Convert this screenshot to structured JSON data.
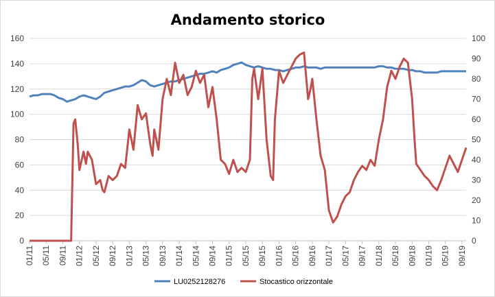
{
  "chart_data": {
    "type": "line",
    "title": "Andamento storico",
    "x_tick_labels": [
      "01/11",
      "05/11",
      "09/11",
      "01/12",
      "05/12",
      "09/12",
      "01/13",
      "05/13",
      "09/13",
      "01/14",
      "05/14",
      "09/14",
      "01/15",
      "05/15",
      "09/15",
      "01/16",
      "05/16",
      "09/16",
      "01/17",
      "05/17",
      "09/17",
      "01/18",
      "05/18",
      "09/18",
      "01/19",
      "05/19",
      "09/19"
    ],
    "y_left": {
      "ticks": [
        "0",
        "20",
        "40",
        "60",
        "80",
        "100",
        "120",
        "140",
        "160"
      ],
      "ylim": [
        0,
        160
      ]
    },
    "y_right": {
      "ticks": [
        "0",
        "10",
        "20",
        "30",
        "40",
        "50",
        "60",
        "70",
        "80",
        "90",
        "100"
      ],
      "ylim": [
        0,
        100
      ]
    },
    "grid": "horizontal",
    "legend_position": "bottom",
    "series": [
      {
        "name": "LU0252128276",
        "axis": "left",
        "color": "#4f81bd",
        "points": [
          [
            "01/11",
            114
          ],
          [
            "02/11",
            115
          ],
          [
            "03/11",
            115
          ],
          [
            "04/11",
            116
          ],
          [
            "05/11",
            116
          ],
          [
            "06/11",
            116
          ],
          [
            "07/11",
            115
          ],
          [
            "08/11",
            113
          ],
          [
            "09/11",
            112
          ],
          [
            "10/11",
            110
          ],
          [
            "11/11",
            111
          ],
          [
            "12/11",
            112
          ],
          [
            "01/12",
            114
          ],
          [
            "02/12",
            115
          ],
          [
            "03/12",
            114
          ],
          [
            "04/12",
            113
          ],
          [
            "05/12",
            112
          ],
          [
            "06/12",
            114
          ],
          [
            "07/12",
            117
          ],
          [
            "08/12",
            118
          ],
          [
            "09/12",
            119
          ],
          [
            "10/12",
            120
          ],
          [
            "11/12",
            121
          ],
          [
            "12/12",
            122
          ],
          [
            "01/13",
            122
          ],
          [
            "02/13",
            123
          ],
          [
            "03/13",
            125
          ],
          [
            "04/13",
            127
          ],
          [
            "05/13",
            126
          ],
          [
            "06/13",
            123
          ],
          [
            "07/13",
            122
          ],
          [
            "08/13",
            123
          ],
          [
            "09/13",
            124
          ],
          [
            "10/13",
            125
          ],
          [
            "11/13",
            126
          ],
          [
            "12/13",
            126
          ],
          [
            "01/14",
            127
          ],
          [
            "02/14",
            128
          ],
          [
            "03/14",
            129
          ],
          [
            "04/14",
            130
          ],
          [
            "05/14",
            131
          ],
          [
            "06/14",
            132
          ],
          [
            "07/14",
            132
          ],
          [
            "08/14",
            133
          ],
          [
            "09/14",
            134
          ],
          [
            "10/14",
            133
          ],
          [
            "11/14",
            135
          ],
          [
            "12/14",
            136
          ],
          [
            "01/15",
            137
          ],
          [
            "02/15",
            139
          ],
          [
            "03/15",
            140
          ],
          [
            "04/15",
            141
          ],
          [
            "05/15",
            139
          ],
          [
            "06/15",
            138
          ],
          [
            "07/15",
            137
          ],
          [
            "08/15",
            138
          ],
          [
            "09/15",
            137
          ],
          [
            "10/15",
            136
          ],
          [
            "11/15",
            136
          ],
          [
            "12/15",
            135
          ],
          [
            "01/16",
            135
          ],
          [
            "02/16",
            134
          ],
          [
            "03/16",
            135
          ],
          [
            "04/16",
            136
          ],
          [
            "05/16",
            137
          ],
          [
            "06/16",
            137
          ],
          [
            "07/16",
            138
          ],
          [
            "08/16",
            137
          ],
          [
            "09/16",
            137
          ],
          [
            "10/16",
            137
          ],
          [
            "11/16",
            136
          ],
          [
            "12/16",
            137
          ],
          [
            "01/17",
            137
          ],
          [
            "02/17",
            137
          ],
          [
            "03/17",
            137
          ],
          [
            "04/17",
            137
          ],
          [
            "05/17",
            137
          ],
          [
            "06/17",
            137
          ],
          [
            "07/17",
            137
          ],
          [
            "08/17",
            137
          ],
          [
            "09/17",
            137
          ],
          [
            "10/17",
            137
          ],
          [
            "11/17",
            137
          ],
          [
            "12/17",
            137
          ],
          [
            "01/18",
            138
          ],
          [
            "02/18",
            138
          ],
          [
            "03/18",
            137
          ],
          [
            "04/18",
            137
          ],
          [
            "05/18",
            136
          ],
          [
            "06/18",
            136
          ],
          [
            "07/18",
            136
          ],
          [
            "08/18",
            135
          ],
          [
            "09/18",
            135
          ],
          [
            "10/18",
            134
          ],
          [
            "11/18",
            134
          ],
          [
            "12/18",
            133
          ],
          [
            "01/19",
            133
          ],
          [
            "02/19",
            133
          ],
          [
            "03/19",
            133
          ],
          [
            "04/19",
            134
          ],
          [
            "05/19",
            134
          ],
          [
            "06/19",
            134
          ],
          [
            "07/19",
            134
          ],
          [
            "08/19",
            134
          ],
          [
            "09/19",
            134
          ],
          [
            "10/19",
            134
          ]
        ]
      },
      {
        "name": "Stocastico orizzontale",
        "axis": "right",
        "color": "#c0504d",
        "points": [
          [
            "01/11",
            0
          ],
          [
            "09/11",
            0
          ],
          [
            "11/11",
            0
          ],
          [
            "11/11",
            58
          ],
          [
            "12/11",
            60
          ],
          [
            "12/11",
            48
          ],
          [
            "01/12",
            35
          ],
          [
            "02/12",
            44
          ],
          [
            "02/12",
            38
          ],
          [
            "03/12",
            44
          ],
          [
            "04/12",
            40
          ],
          [
            "05/12",
            28
          ],
          [
            "06/12",
            30
          ],
          [
            "06/12",
            25
          ],
          [
            "07/12",
            24
          ],
          [
            "08/12",
            32
          ],
          [
            "09/12",
            30
          ],
          [
            "10/12",
            32
          ],
          [
            "11/12",
            38
          ],
          [
            "12/12",
            36
          ],
          [
            "01/13",
            55
          ],
          [
            "02/13",
            45
          ],
          [
            "03/13",
            67
          ],
          [
            "04/13",
            60
          ],
          [
            "05/13",
            63
          ],
          [
            "06/13",
            48
          ],
          [
            "06/13",
            42
          ],
          [
            "07/13",
            55
          ],
          [
            "08/13",
            45
          ],
          [
            "09/13",
            70
          ],
          [
            "10/13",
            80
          ],
          [
            "11/13",
            72
          ],
          [
            "12/13",
            88
          ],
          [
            "01/14",
            78
          ],
          [
            "02/14",
            82
          ],
          [
            "03/14",
            72
          ],
          [
            "04/14",
            76
          ],
          [
            "05/14",
            84
          ],
          [
            "06/14",
            78
          ],
          [
            "07/14",
            82
          ],
          [
            "08/14",
            66
          ],
          [
            "09/14",
            76
          ],
          [
            "10/14",
            60
          ],
          [
            "11/14",
            40
          ],
          [
            "12/14",
            38
          ],
          [
            "01/15",
            33
          ],
          [
            "02/15",
            40
          ],
          [
            "03/15",
            34
          ],
          [
            "04/15",
            36
          ],
          [
            "05/15",
            34
          ],
          [
            "06/15",
            40
          ],
          [
            "06/15",
            80
          ],
          [
            "07/15",
            85
          ],
          [
            "08/15",
            70
          ],
          [
            "09/15",
            85
          ],
          [
            "10/15",
            50
          ],
          [
            "11/15",
            32
          ],
          [
            "11/15",
            30
          ],
          [
            "12/15",
            60
          ],
          [
            "01/16",
            84
          ],
          [
            "02/16",
            78
          ],
          [
            "03/16",
            82
          ],
          [
            "04/16",
            86
          ],
          [
            "05/16",
            90
          ],
          [
            "06/16",
            92
          ],
          [
            "07/16",
            93
          ],
          [
            "08/16",
            70
          ],
          [
            "08/16",
            75
          ],
          [
            "09/16",
            80
          ],
          [
            "10/16",
            60
          ],
          [
            "11/16",
            42
          ],
          [
            "12/16",
            35
          ],
          [
            "01/17",
            15
          ],
          [
            "02/17",
            9
          ],
          [
            "03/17",
            12
          ],
          [
            "04/17",
            18
          ],
          [
            "05/17",
            22
          ],
          [
            "06/17",
            24
          ],
          [
            "07/17",
            30
          ],
          [
            "08/17",
            34
          ],
          [
            "09/17",
            37
          ],
          [
            "10/17",
            35
          ],
          [
            "11/17",
            40
          ],
          [
            "12/17",
            37
          ],
          [
            "01/18",
            50
          ],
          [
            "02/18",
            60
          ],
          [
            "03/18",
            76
          ],
          [
            "04/18",
            84
          ],
          [
            "05/18",
            80
          ],
          [
            "06/18",
            86
          ],
          [
            "07/18",
            90
          ],
          [
            "08/18",
            88
          ],
          [
            "09/18",
            70
          ],
          [
            "09/18",
            50
          ],
          [
            "10/18",
            38
          ],
          [
            "11/18",
            35
          ],
          [
            "12/18",
            32
          ],
          [
            "01/19",
            30
          ],
          [
            "02/19",
            27
          ],
          [
            "03/19",
            25
          ],
          [
            "04/19",
            30
          ],
          [
            "05/19",
            36
          ],
          [
            "06/19",
            42
          ],
          [
            "07/19",
            38
          ],
          [
            "08/19",
            34
          ],
          [
            "09/19",
            40
          ],
          [
            "10/19",
            46
          ]
        ]
      }
    ]
  }
}
